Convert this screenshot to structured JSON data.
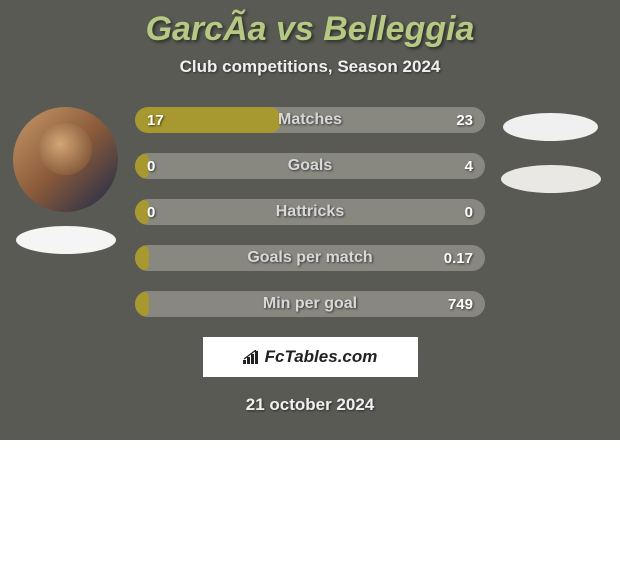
{
  "title": "GarcÃ­a vs Belleggia",
  "subtitle": "Club competitions, Season 2024",
  "colors": {
    "background": "#5a5a54",
    "title_color": "#b5c983",
    "subtitle_color": "#f0f0f0",
    "bar_bg": "#888880",
    "bar_fill": "#a89830",
    "bar_text": "#ffffff",
    "bar_label": "#d8d8d8",
    "ellipse_left": "#f5f5f5",
    "ellipse_right1": "#f0f0f0",
    "ellipse_right2": "#eae8e4",
    "logo_bg": "#ffffff",
    "logo_text": "#222222",
    "date_color": "#f0f0f0"
  },
  "typography": {
    "title_fontsize": 34,
    "subtitle_fontsize": 17,
    "bar_label_fontsize": 16,
    "bar_value_fontsize": 15,
    "logo_fontsize": 17,
    "date_fontsize": 17
  },
  "bars": [
    {
      "label": "Matches",
      "left": "17",
      "right": "23",
      "fill_pct": 42
    },
    {
      "label": "Goals",
      "left": "0",
      "right": "4",
      "fill_pct": 4
    },
    {
      "label": "Hattricks",
      "left": "0",
      "right": "0",
      "fill_pct": 4
    },
    {
      "label": "Goals per match",
      "left": "",
      "right": "0.17",
      "fill_pct": 4
    },
    {
      "label": "Min per goal",
      "left": "",
      "right": "749",
      "fill_pct": 4
    }
  ],
  "logo_text": "FcTables.com",
  "date": "21 october 2024"
}
